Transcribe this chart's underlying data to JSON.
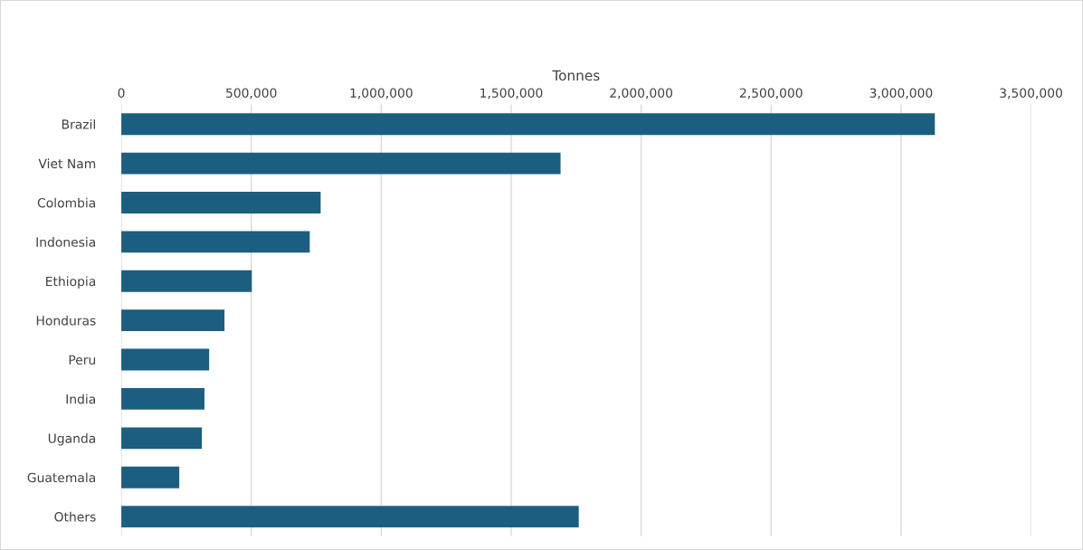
{
  "chart_data": {
    "type": "bar",
    "orientation": "horizontal",
    "xlabel": "Tonnes",
    "categories": [
      "Brazil",
      "Viet Nam",
      "Colombia",
      "Indonesia",
      "Ethiopia",
      "Honduras",
      "Peru",
      "India",
      "Uganda",
      "Guatemala",
      "Others"
    ],
    "values": [
      3130000,
      1690000,
      767000,
      725000,
      502000,
      397000,
      338000,
      320000,
      310000,
      223000,
      1760000
    ],
    "color": "#1b5e80",
    "xlim": [
      0,
      3500000
    ],
    "xticks": [
      0,
      {
        "value": 500000,
        "label": "500,000"
      },
      {
        "value": 1000000,
        "label": "1,000,000"
      },
      {
        "value": 1500000,
        "label": "1,500,000"
      },
      {
        "value": 2000000,
        "label": "2,000,000"
      },
      {
        "value": 2500000,
        "label": "2,500,000"
      },
      {
        "value": 3000000,
        "label": "3,000,000"
      },
      {
        "value": 3500000,
        "label": "3,500,000"
      }
    ],
    "grid": "x"
  }
}
